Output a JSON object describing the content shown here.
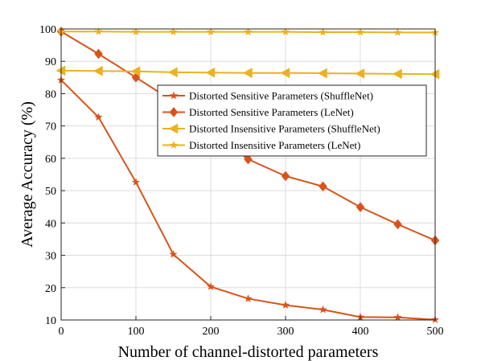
{
  "chart_data": {
    "type": "line",
    "title": "",
    "xlabel": "Number of channel-distorted parameters",
    "ylabel": "Average Accuracy (%)",
    "x": [
      0,
      50,
      100,
      150,
      200,
      250,
      300,
      350,
      400,
      450,
      500
    ],
    "xlim": [
      0,
      500
    ],
    "ylim": [
      10,
      100
    ],
    "xticks": [
      0,
      100,
      200,
      300,
      400,
      500
    ],
    "yticks": [
      10,
      20,
      30,
      40,
      50,
      60,
      70,
      80,
      90,
      100
    ],
    "grid": true,
    "legend_position": "upper-right",
    "series": [
      {
        "name": "Distorted Sensitive Parameters (ShuffleNet)",
        "color": "#d95319",
        "marker": "star",
        "values": [
          84.2,
          72.7,
          52.6,
          30.3,
          20.3,
          16.6,
          14.6,
          13.2,
          10.9,
          10.8,
          10.1
        ]
      },
      {
        "name": "Distorted Sensitive Parameters (LeNet)",
        "color": "#d95319",
        "marker": "diamond",
        "values": [
          99.2,
          92.3,
          85.0,
          77.6,
          68.5,
          59.7,
          54.5,
          51.3,
          44.9,
          39.6,
          34.6
        ]
      },
      {
        "name": "Distorted Insensitive Parameters (ShuffleNet)",
        "color": "#edb120",
        "marker": "triangle-left",
        "values": [
          87.1,
          87.0,
          86.9,
          86.6,
          86.5,
          86.4,
          86.4,
          86.3,
          86.2,
          86.1,
          86.0
        ]
      },
      {
        "name": "Distorted Insensitive Parameters (LeNet)",
        "color": "#edb120",
        "marker": "star",
        "values": [
          99.2,
          99.2,
          99.1,
          99.1,
          99.1,
          99.1,
          99.1,
          99.0,
          99.0,
          98.9,
          98.9
        ]
      }
    ]
  }
}
